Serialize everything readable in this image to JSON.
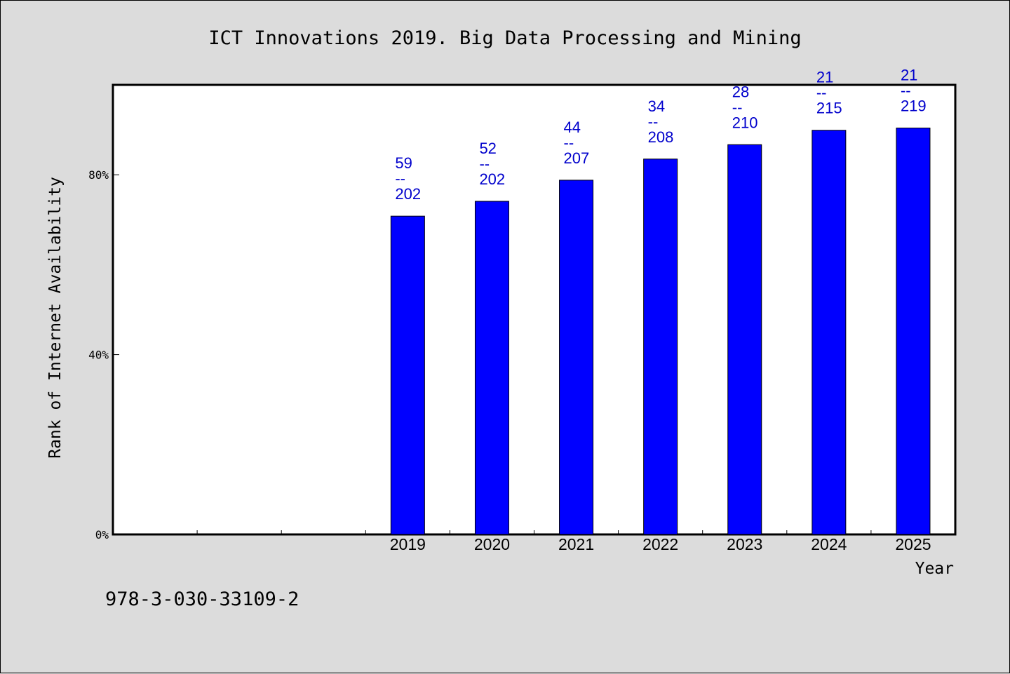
{
  "chart_data": {
    "type": "bar",
    "title": "ICT Innovations 2019. Big Data Processing and Mining",
    "xlabel": "Year",
    "ylabel": "Rank of Internet Availability",
    "ylim": [
      0,
      100
    ],
    "yticks": [
      {
        "value": 0,
        "label": "0%"
      },
      {
        "value": 40,
        "label": "40%"
      },
      {
        "value": 80,
        "label": "80%"
      }
    ],
    "x_slots": [
      "",
      "",
      "",
      "2019",
      "2020",
      "2021",
      "2022",
      "2023",
      "2024",
      "2025"
    ],
    "categories": [
      "2019",
      "2020",
      "2021",
      "2022",
      "2023",
      "2024",
      "2025"
    ],
    "values": [
      70.8,
      74.1,
      78.8,
      83.5,
      86.7,
      89.9,
      90.4
    ],
    "data_labels": [
      {
        "rank": "59",
        "sep": "--",
        "total": "202"
      },
      {
        "rank": "52",
        "sep": "--",
        "total": "202"
      },
      {
        "rank": "44",
        "sep": "--",
        "total": "207"
      },
      {
        "rank": "34",
        "sep": "--",
        "total": "208"
      },
      {
        "rank": "28",
        "sep": "--",
        "total": "210"
      },
      {
        "rank": "21",
        "sep": "--",
        "total": "215"
      },
      {
        "rank": "21",
        "sep": "--",
        "total": "219"
      }
    ],
    "bar_color": "#0000ff",
    "label_color": "#0000cc",
    "grid": false,
    "legend": "none"
  },
  "footer_text": "978-3-030-33109-2"
}
